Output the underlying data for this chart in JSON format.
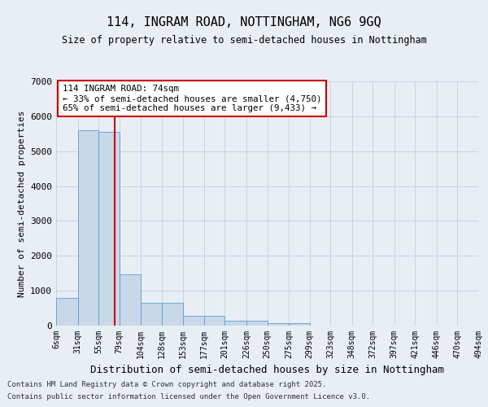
{
  "title1": "114, INGRAM ROAD, NOTTINGHAM, NG6 9GQ",
  "title2": "Size of property relative to semi-detached houses in Nottingham",
  "xlabel": "Distribution of semi-detached houses by size in Nottingham",
  "ylabel": "Number of semi-detached properties",
  "bins": [
    "6sqm",
    "31sqm",
    "55sqm",
    "79sqm",
    "104sqm",
    "128sqm",
    "153sqm",
    "177sqm",
    "201sqm",
    "226sqm",
    "250sqm",
    "275sqm",
    "299sqm",
    "323sqm",
    "348sqm",
    "372sqm",
    "397sqm",
    "421sqm",
    "446sqm",
    "470sqm",
    "494sqm"
  ],
  "bin_edges": [
    6,
    31,
    55,
    79,
    104,
    128,
    153,
    177,
    201,
    226,
    250,
    275,
    299,
    323,
    348,
    372,
    397,
    421,
    446,
    470,
    494
  ],
  "values": [
    800,
    5600,
    5550,
    1480,
    650,
    650,
    290,
    290,
    140,
    140,
    80,
    70,
    0,
    0,
    0,
    0,
    0,
    0,
    0,
    0
  ],
  "bar_color": "#c8d8e8",
  "bar_edge_color": "#5a9fd4",
  "grid_color": "#c8d4e4",
  "property_value": 74,
  "vline_color": "#cc0000",
  "annotation_text": "114 INGRAM ROAD: 74sqm\n← 33% of semi-detached houses are smaller (4,750)\n65% of semi-detached houses are larger (9,433) →",
  "footer1": "Contains HM Land Registry data © Crown copyright and database right 2025.",
  "footer2": "Contains public sector information licensed under the Open Government Licence v3.0.",
  "bg_color": "#e8eef4",
  "plot_bg_color": "#e8eef4",
  "ylim": [
    0,
    7000
  ],
  "yticks": [
    0,
    1000,
    2000,
    3000,
    4000,
    5000,
    6000,
    7000
  ]
}
